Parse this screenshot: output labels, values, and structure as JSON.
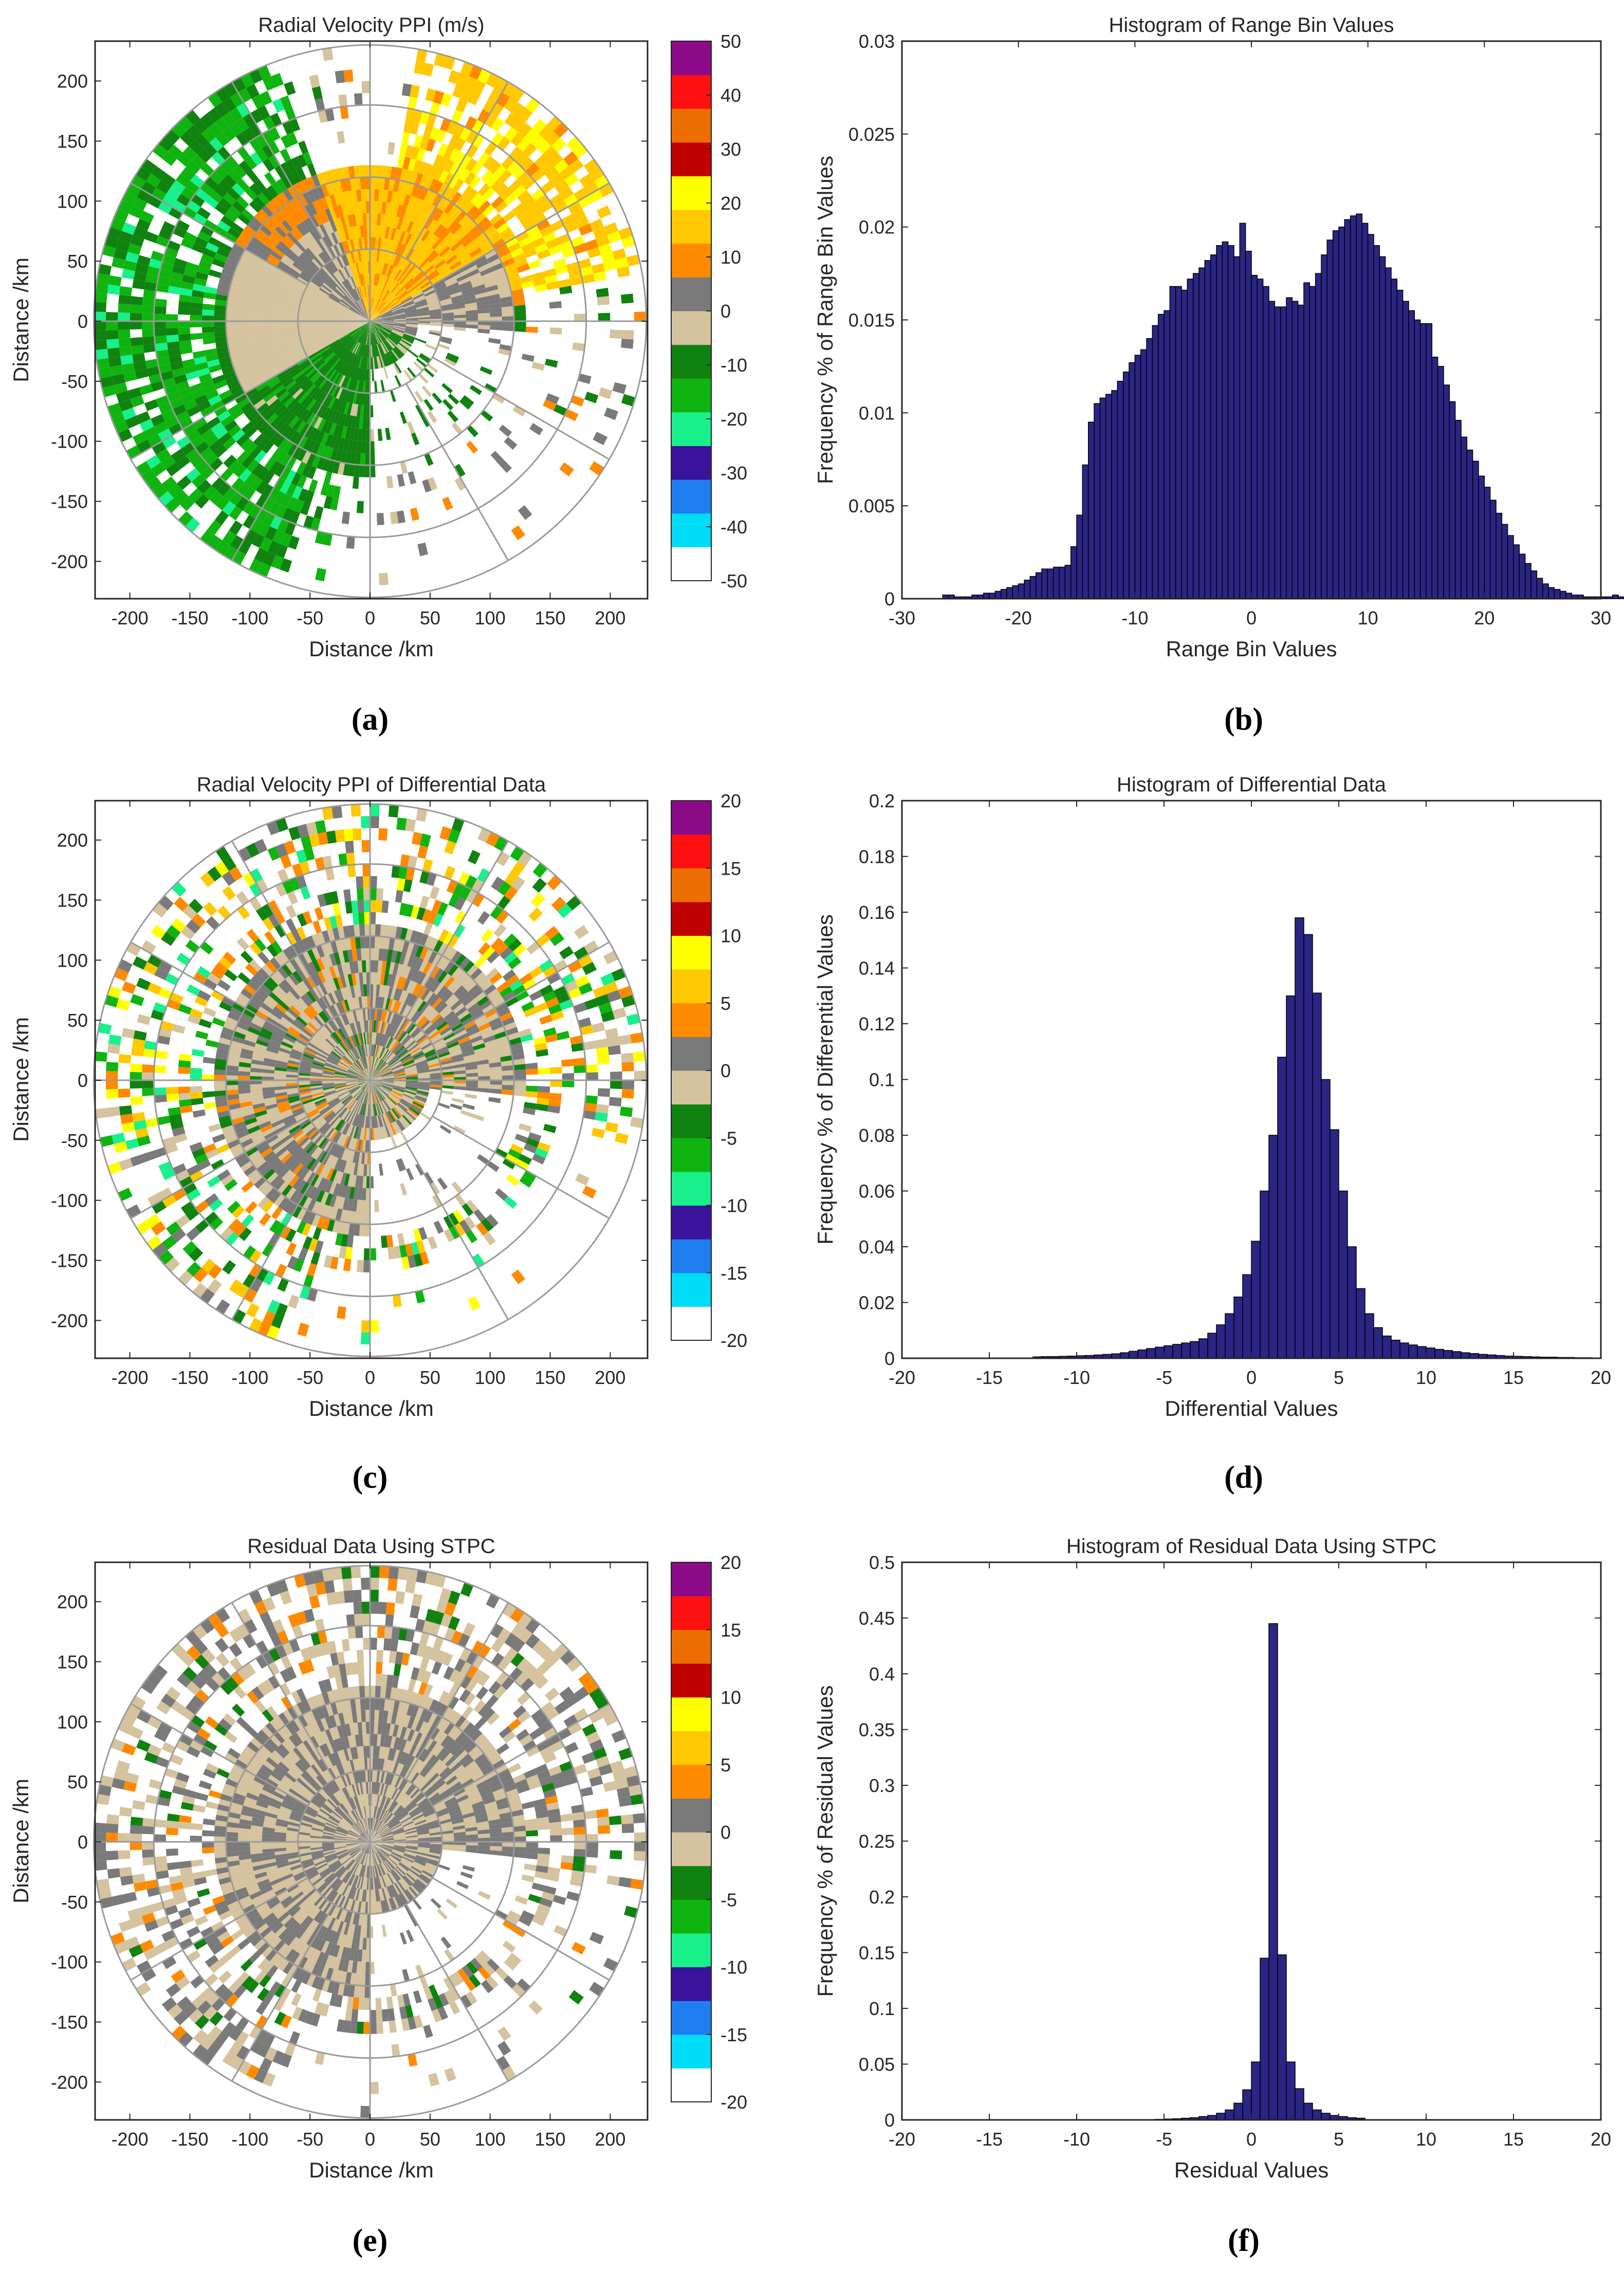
{
  "captions": [
    "(a)",
    "(b)",
    "(c)",
    "(d)",
    "(e)",
    "(f)"
  ],
  "colors": {
    "bar_fill": "#2b2585",
    "bar_edge": "#000000",
    "grid_ring": "#9a9a9a",
    "colormap": [
      "#ffffff",
      "#00dcf5",
      "#1e7ef0",
      "#3b129a",
      "#18f08c",
      "#10b410",
      "#108210",
      "#d4c39e",
      "#7a7a7a",
      "#ff8a00",
      "#ffc800",
      "#ffff00",
      "#c00000",
      "#ec6e00",
      "#ff1010",
      "#8c0a88"
    ]
  },
  "chart_data": [
    {
      "id": "a",
      "type": "heatmap",
      "subtype": "ppi",
      "title": "Radial Velocity PPI (m/s)",
      "xlabel": "Distance /km",
      "ylabel": "Distance /km",
      "xlim": [
        -230,
        230
      ],
      "ylim": [
        -230,
        230
      ],
      "xticks": [
        -200,
        -150,
        -100,
        -50,
        0,
        50,
        100,
        150,
        200
      ],
      "yticks": [
        200,
        150,
        100,
        50,
        0,
        -50,
        -100,
        -150,
        -200
      ],
      "range_rings_km": [
        60,
        120,
        180,
        230
      ],
      "azimuth_spokes_deg": [
        0,
        30,
        60,
        90,
        120,
        150,
        180,
        210,
        240,
        270,
        300,
        330
      ],
      "colorbar_ticks": [
        50,
        40,
        30,
        20,
        10,
        0,
        -10,
        -20,
        -30,
        -40,
        -50
      ],
      "colorbar_range": [
        -50,
        50
      ],
      "scene": "velocity"
    },
    {
      "id": "b",
      "type": "bar",
      "title": "Histogram of Range Bin Values",
      "xlabel": "Range Bin Values",
      "ylabel": "Frequency % of Range Bin Values",
      "xlim": [
        -30,
        30
      ],
      "ylim": [
        0,
        0.03
      ],
      "xticks": [
        -30,
        -20,
        -10,
        0,
        10,
        20,
        30
      ],
      "yticks": [
        0,
        0.005,
        0.01,
        0.015,
        0.02,
        0.025,
        0.03
      ],
      "bin_start": -28,
      "bin_width": 0.5,
      "values": [
        0,
        0,
        0,
        0.0002,
        0.0002,
        0.0001,
        0.0001,
        0.0001,
        0.0002,
        0.0002,
        0.0003,
        0.0003,
        0.0004,
        0.0005,
        0.0006,
        0.0007,
        0.0008,
        0.001,
        0.0012,
        0.0014,
        0.0016,
        0.0016,
        0.0017,
        0.0017,
        0.0018,
        0.0028,
        0.0045,
        0.0072,
        0.0095,
        0.0105,
        0.0108,
        0.011,
        0.0112,
        0.0117,
        0.0122,
        0.0127,
        0.0131,
        0.0134,
        0.014,
        0.0147,
        0.0153,
        0.0155,
        0.0168,
        0.0168,
        0.0166,
        0.0172,
        0.0175,
        0.0178,
        0.0182,
        0.0185,
        0.019,
        0.0192,
        0.019,
        0.0184,
        0.0202,
        0.0187,
        0.0174,
        0.0172,
        0.0168,
        0.016,
        0.0157,
        0.0157,
        0.0162,
        0.016,
        0.0158,
        0.017,
        0.0168,
        0.0175,
        0.0185,
        0.0193,
        0.0198,
        0.02,
        0.0204,
        0.0206,
        0.0207,
        0.0202,
        0.0196,
        0.019,
        0.0184,
        0.0178,
        0.0172,
        0.0166,
        0.016,
        0.0155,
        0.015,
        0.0148,
        0.0148,
        0.013,
        0.0125,
        0.0115,
        0.0106,
        0.0096,
        0.0087,
        0.008,
        0.0074,
        0.0066,
        0.006,
        0.0053,
        0.0046,
        0.004,
        0.0034,
        0.0029,
        0.0024,
        0.0019,
        0.0015,
        0.0011,
        0.0008,
        0.0006,
        0.0005,
        0.0004,
        0.0003,
        0.0002,
        0.0002,
        0.0001,
        0.0001,
        0.0001,
        0.0001,
        0.0001,
        0.0002,
        0.0001,
        0,
        0,
        0
      ]
    },
    {
      "id": "c",
      "type": "heatmap",
      "subtype": "ppi",
      "title": "Radial Velocity PPI of Differential Data",
      "xlabel": "Distance /km",
      "ylabel": "Distance /km",
      "xlim": [
        -230,
        230
      ],
      "ylim": [
        -230,
        230
      ],
      "xticks": [
        -200,
        -150,
        -100,
        -50,
        0,
        50,
        100,
        150,
        200
      ],
      "yticks": [
        200,
        150,
        100,
        50,
        0,
        -50,
        -100,
        -150,
        -200
      ],
      "range_rings_km": [
        60,
        120,
        180,
        230
      ],
      "azimuth_spokes_deg": [
        0,
        30,
        60,
        90,
        120,
        150,
        180,
        210,
        240,
        270,
        300,
        330
      ],
      "colorbar_ticks": [
        20,
        15,
        10,
        5,
        0,
        -5,
        -10,
        -15,
        -20
      ],
      "colorbar_range": [
        -20,
        20
      ],
      "scene": "differential"
    },
    {
      "id": "d",
      "type": "bar",
      "title": "Histogram of Differential Data",
      "xlabel": "Differential Values",
      "ylabel": "Frequency % of Differential Values",
      "xlim": [
        -20,
        20
      ],
      "ylim": [
        0,
        0.2
      ],
      "xticks": [
        -20,
        -15,
        -10,
        -5,
        0,
        5,
        10,
        15,
        20
      ],
      "yticks": [
        0,
        0.02,
        0.04,
        0.06,
        0.08,
        0.1,
        0.12,
        0.14,
        0.16,
        0.18,
        0.2
      ],
      "bin_start": -18.5,
      "bin_width": 0.5,
      "values": [
        0,
        0,
        0,
        0,
        0,
        0,
        0,
        0,
        0,
        0,
        0,
        0,
        0.0005,
        0.0006,
        0.0006,
        0.0007,
        0.0008,
        0.0009,
        0.001,
        0.0012,
        0.0014,
        0.0016,
        0.002,
        0.0025,
        0.003,
        0.0035,
        0.004,
        0.0045,
        0.005,
        0.0055,
        0.006,
        0.007,
        0.009,
        0.012,
        0.016,
        0.022,
        0.03,
        0.042,
        0.06,
        0.08,
        0.108,
        0.13,
        0.158,
        0.152,
        0.131,
        0.1,
        0.082,
        0.06,
        0.04,
        0.025,
        0.016,
        0.011,
        0.008,
        0.0065,
        0.0055,
        0.0048,
        0.0042,
        0.0037,
        0.0032,
        0.0028,
        0.0024,
        0.002,
        0.0017,
        0.0014,
        0.0012,
        0.001,
        0.0008,
        0.0007,
        0.0006,
        0.0005,
        0.0004,
        0.0004,
        0.0003,
        0.0003,
        0.0002,
        0.0002,
        0,
        0,
        0
      ]
    },
    {
      "id": "e",
      "type": "heatmap",
      "subtype": "ppi",
      "title": "Residual Data Using STPC",
      "xlabel": "Distance /km",
      "ylabel": "Distance /km",
      "xlim": [
        -230,
        230
      ],
      "ylim": [
        -230,
        230
      ],
      "xticks": [
        -200,
        -150,
        -100,
        -50,
        0,
        50,
        100,
        150,
        200
      ],
      "yticks": [
        200,
        150,
        100,
        50,
        0,
        -50,
        -100,
        -150,
        -200
      ],
      "range_rings_km": [
        60,
        120,
        180,
        230
      ],
      "azimuth_spokes_deg": [
        0,
        30,
        60,
        90,
        120,
        150,
        180,
        210,
        240,
        270,
        300,
        330
      ],
      "colorbar_ticks": [
        20,
        15,
        10,
        5,
        0,
        -5,
        -10,
        -15,
        -20
      ],
      "colorbar_range": [
        -20,
        20
      ],
      "scene": "residual"
    },
    {
      "id": "f",
      "type": "bar",
      "title": "Histogram of Residual Data Using STPC",
      "xlabel": "Residual Values",
      "ylabel": "Frequency % of Residual Values",
      "xlim": [
        -20,
        20
      ],
      "ylim": [
        0,
        0.5
      ],
      "xticks": [
        -20,
        -15,
        -10,
        -5,
        0,
        5,
        10,
        15,
        20
      ],
      "yticks": [
        0,
        0.05,
        0.1,
        0.15,
        0.2,
        0.25,
        0.3,
        0.35,
        0.4,
        0.45,
        0.5
      ],
      "bin_start": -6,
      "bin_width": 0.5,
      "values": [
        0.0003,
        0.0005,
        0.0008,
        0.001,
        0.0015,
        0.002,
        0.003,
        0.004,
        0.006,
        0.009,
        0.015,
        0.027,
        0.052,
        0.145,
        0.445,
        0.148,
        0.052,
        0.028,
        0.015,
        0.009,
        0.006,
        0.004,
        0.003,
        0.002,
        0.0015
      ]
    }
  ]
}
